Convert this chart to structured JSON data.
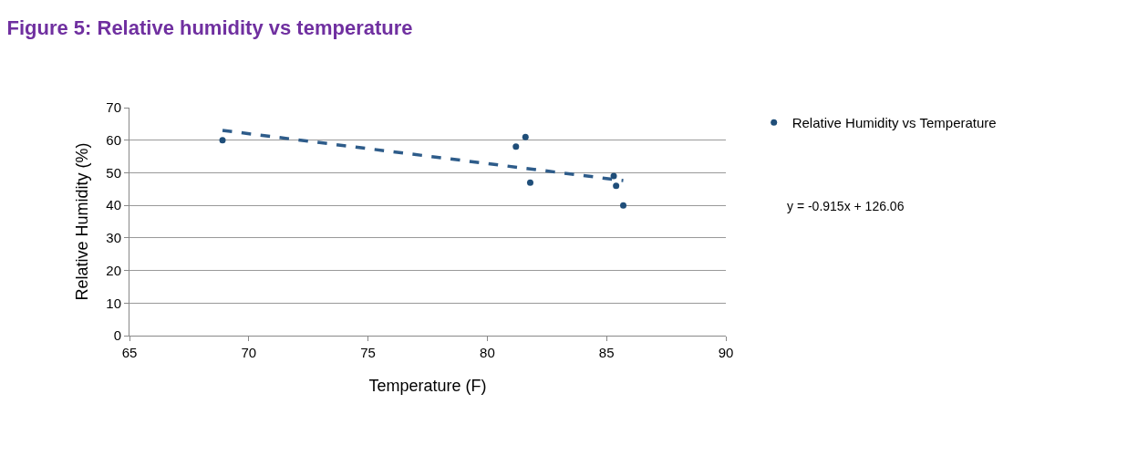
{
  "chart_data": {
    "type": "scatter",
    "title": "Figure 5: Relative humidity vs temperature",
    "xlabel": "Temperature (F)",
    "ylabel": "Relative Humidity (%)",
    "series": [
      {
        "name": "Relative Humidity vs Temperature",
        "color": "#1f4e79",
        "x": [
          68.9,
          81.2,
          81.6,
          81.8,
          85.3,
          85.4,
          85.7
        ],
        "values": [
          60,
          58,
          61,
          47,
          49,
          46,
          40
        ],
        "marker": "circle"
      },
      {
        "type": "line",
        "color": "#2e5c8a",
        "x": [
          68.9,
          85.7
        ],
        "values": [
          63.0,
          47.6
        ],
        "line_style": "dashed",
        "marker": "none"
      }
    ],
    "annotations": [
      "y = -0.915x + 126.06"
    ],
    "xlim": [
      65,
      90
    ],
    "xticks": [
      65,
      70,
      75,
      80,
      85,
      90
    ],
    "ylim": [
      0,
      70
    ],
    "yticks": [
      0,
      10,
      20,
      30,
      40,
      50,
      60,
      70
    ],
    "grid": "y",
    "legend": "right"
  }
}
